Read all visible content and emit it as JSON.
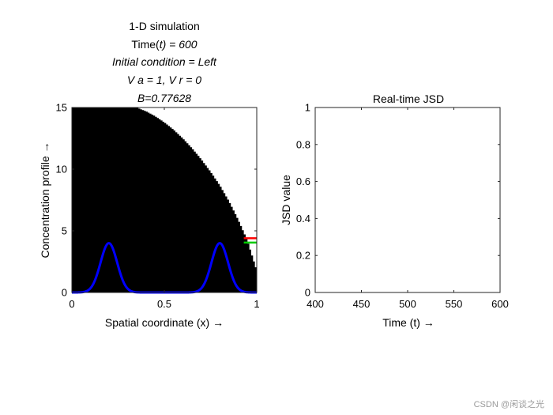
{
  "figure": {
    "watermark": "CSDN @闲谈之光"
  },
  "chart_data": [
    {
      "type": "area",
      "title_lines": [
        "1-D simulation",
        "Time(t) = 600",
        "Initial condition = Left",
        "V a = 1,  V r = 0",
        "B=0.77628"
      ],
      "title_time_prefix": "Time(",
      "title_time_var": "t",
      "title_time_suffix": ") = 600",
      "xlabel": "Spatial coordinate (x) →",
      "ylabel": "Concentration profile →",
      "xlim": [
        0,
        1
      ],
      "ylim": [
        0,
        15
      ],
      "xticks": [
        0,
        0.5,
        1
      ],
      "xtick_labels": [
        "0",
        "0.5",
        "1"
      ],
      "yticks": [
        0,
        5,
        10,
        15
      ],
      "ytick_labels": [
        "0",
        "5",
        "10",
        "15"
      ],
      "grid": false,
      "fill_color": "#000000",
      "fill_boundary": {
        "x": [
          0.0,
          0.35,
          0.4,
          0.45,
          0.5,
          0.55,
          0.6,
          0.65,
          0.7,
          0.75,
          0.8,
          0.85,
          0.9,
          0.95,
          1.0
        ],
        "y": [
          15.0,
          15.0,
          14.7,
          14.3,
          13.8,
          13.2,
          12.5,
          11.7,
          10.8,
          9.8,
          8.7,
          7.4,
          5.9,
          4.2,
          1.8
        ]
      },
      "series": [
        {
          "color": "#0000ff",
          "profile": "gaussian",
          "peaks": [
            {
              "center": 0.2,
              "amplitude": 4.0,
              "sigma": 0.045
            },
            {
              "center": 0.8,
              "amplitude": 4.0,
              "sigma": 0.045
            }
          ]
        }
      ],
      "markers": [
        {
          "color": "#ff0000",
          "y": 4.4,
          "x_range": [
            0.93,
            1.0
          ]
        },
        {
          "color": "#00cc00",
          "y": 4.05,
          "x_range": [
            0.93,
            1.0
          ]
        }
      ]
    },
    {
      "type": "line",
      "title": "Real-time JSD",
      "xlabel": "Time (t) →",
      "ylabel": "JSD value",
      "xlim": [
        400,
        600
      ],
      "ylim": [
        0,
        1
      ],
      "xticks": [
        400,
        450,
        500,
        550,
        600
      ],
      "xtick_labels": [
        "400",
        "450",
        "500",
        "550",
        "600"
      ],
      "yticks": [
        0,
        0.2,
        0.4,
        0.6,
        0.8,
        1
      ],
      "ytick_labels": [
        "0",
        "0.2",
        "0.4",
        "0.6",
        "0.8",
        "1"
      ],
      "grid": false,
      "series": []
    }
  ]
}
